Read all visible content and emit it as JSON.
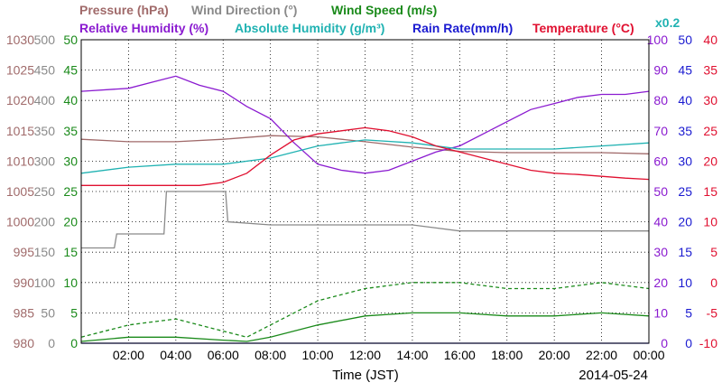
{
  "chart_data": {
    "type": "line",
    "date": "2014-05-24",
    "xlabel": "Time (JST)",
    "x_tick_labels": [
      "02:00",
      "04:00",
      "06:00",
      "08:00",
      "10:00",
      "12:00",
      "14:00",
      "16:00",
      "18:00",
      "20:00",
      "22:00",
      "00:00"
    ],
    "x_range_hours": [
      0,
      24
    ],
    "grid": true,
    "legend": {
      "row1": [
        {
          "key": "pressure",
          "label": "Pressure (hPa)"
        },
        {
          "key": "wind_dir",
          "label": "Wind Direction (°)"
        },
        {
          "key": "wind_speed",
          "label": "Wind Speed (m/s)"
        }
      ],
      "row2": [
        {
          "key": "rh",
          "label": "Relative Humidity (%)"
        },
        {
          "key": "ah",
          "label": "Absolute Humidity (g/m³)"
        },
        {
          "key": "rain",
          "label": "Rain Rate(mm/h)"
        },
        {
          "key": "temp",
          "label": "Temperature (°C)"
        }
      ],
      "ah_scale_note": "x0.2"
    },
    "colors": {
      "pressure": "#a06a6a",
      "wind_dir": "#8a8a8a",
      "wind_speed": "#1a8a1a",
      "rh": "#8a1ad0",
      "ah": "#20b2b2",
      "rain": "#1a1ad0",
      "temp": "#e01030"
    },
    "axes": {
      "pressure": {
        "range": [
          980,
          1030
        ],
        "ticks": [
          "980",
          "985",
          "990",
          "995",
          "1000",
          "1005",
          "1010",
          "1015",
          "1020",
          "1025",
          "1030"
        ]
      },
      "wind_dir": {
        "range": [
          0,
          500
        ],
        "ticks": [
          "0",
          "50",
          "100",
          "150",
          "200",
          "250",
          "300",
          "350",
          "400",
          "450",
          "500"
        ]
      },
      "wind_speed": {
        "range": [
          0,
          50
        ],
        "ticks": [
          "0",
          "5",
          "10",
          "15",
          "20",
          "25",
          "30",
          "35",
          "40",
          "45",
          "50"
        ]
      },
      "rh": {
        "range": [
          0,
          100
        ],
        "ticks": [
          "0",
          "10",
          "20",
          "30",
          "40",
          "50",
          "60",
          "70",
          "80",
          "90",
          "100"
        ]
      },
      "rain": {
        "range": [
          0,
          50
        ],
        "ticks": [
          "0",
          "5",
          "10",
          "15",
          "20",
          "25",
          "30",
          "35",
          "40",
          "45",
          "50"
        ]
      },
      "temp": {
        "range": [
          -10,
          40
        ],
        "ticks": [
          "-10",
          "-5",
          "0",
          "5",
          "10",
          "15",
          "20",
          "25",
          "30",
          "35",
          "40"
        ]
      }
    },
    "series": [
      {
        "key": "pressure",
        "axis": "pressure",
        "x": [
          0,
          2,
          4,
          6,
          8,
          10,
          12,
          14,
          16,
          18,
          20,
          22,
          24
        ],
        "y": [
          1013.6,
          1013.2,
          1013.2,
          1013.6,
          1014.2,
          1014.0,
          1013.2,
          1012.3,
          1011.6,
          1011.4,
          1011.4,
          1011.4,
          1011.2
        ]
      },
      {
        "key": "wind_dir",
        "axis": "wind_dir",
        "x": [
          0,
          1.4,
          1.5,
          3.5,
          3.6,
          6.1,
          6.2,
          8,
          10,
          12,
          14,
          16,
          18,
          20,
          22,
          24
        ],
        "y": [
          157,
          157,
          180,
          180,
          250,
          250,
          200,
          195,
          195,
          195,
          195,
          185,
          185,
          185,
          185,
          185
        ]
      },
      {
        "key": "wind_speed_max",
        "axis": "wind_speed",
        "style": "dashed",
        "x": [
          0,
          2,
          4,
          6,
          7,
          8,
          10,
          12,
          14,
          16,
          18,
          20,
          22,
          24
        ],
        "y": [
          1,
          3,
          4,
          2,
          1,
          3,
          7,
          9,
          10,
          10,
          9,
          9,
          10,
          9
        ]
      },
      {
        "key": "wind_speed_avg",
        "axis": "wind_speed",
        "x": [
          0,
          2,
          4,
          6,
          7,
          8,
          10,
          12,
          14,
          16,
          18,
          20,
          22,
          24
        ],
        "y": [
          0.3,
          1,
          1,
          0.5,
          0.3,
          1,
          3,
          4.5,
          5,
          5,
          4.5,
          4.5,
          5,
          4.5
        ]
      },
      {
        "key": "rh",
        "axis": "rh",
        "x": [
          0,
          2,
          3,
          4,
          5,
          6,
          7,
          8,
          9,
          10,
          11,
          12,
          13,
          14,
          15,
          16,
          17,
          18,
          19,
          20,
          21,
          22,
          23,
          24
        ],
        "y": [
          83,
          84,
          86,
          88,
          85,
          83,
          78,
          74,
          66,
          59,
          57,
          56,
          57,
          60,
          63,
          65,
          69,
          73,
          77,
          79,
          81,
          82,
          82,
          83
        ]
      },
      {
        "key": "ah",
        "axis": "wind_speed",
        "x": [
          0,
          2,
          4,
          6,
          8,
          10,
          11,
          12,
          14,
          16,
          18,
          20,
          22,
          24
        ],
        "y": [
          28,
          29,
          29.5,
          29.5,
          30.5,
          32.5,
          33,
          33.5,
          33,
          32,
          32,
          32,
          32.5,
          33
        ]
      },
      {
        "key": "rain",
        "axis": "rain",
        "x": [
          0,
          24
        ],
        "y": [
          0,
          0
        ]
      },
      {
        "key": "temp",
        "axis": "temp",
        "x": [
          0,
          2,
          4,
          5,
          6,
          7,
          8,
          9,
          10,
          11,
          12,
          13,
          14,
          15,
          16,
          17,
          18,
          19,
          20,
          21,
          22,
          23,
          24
        ],
        "y": [
          16,
          16,
          16,
          16,
          16.5,
          18,
          21,
          23.5,
          24.5,
          25,
          25.5,
          25,
          24,
          22.5,
          21.5,
          20.5,
          19.5,
          18.5,
          18,
          17.8,
          17.5,
          17.2,
          17
        ]
      }
    ]
  }
}
